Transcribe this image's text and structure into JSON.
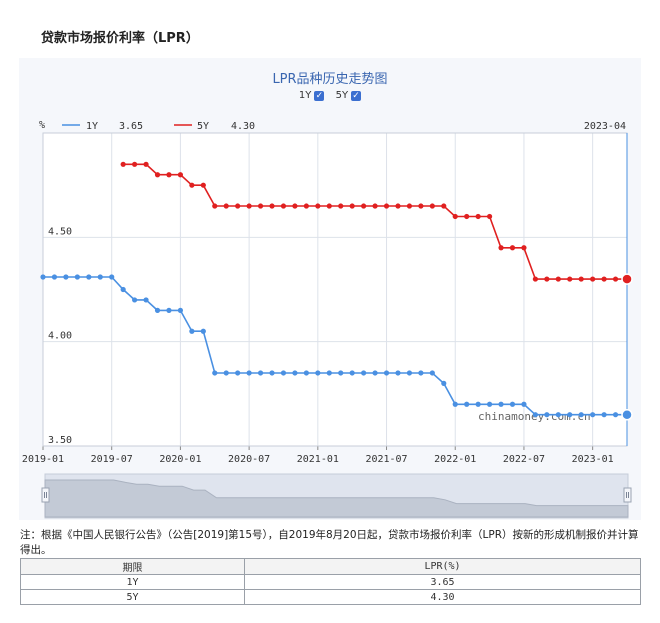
{
  "page": {
    "title": "贷款市场报价利率（LPR）",
    "note": "注：根据《中国人民银行公告》（公告[2019]第15号），自2019年8月20日起，贷款市场报价利率（LPR）按新的形成机制报价并计算得出。"
  },
  "toggles": [
    {
      "label": "1Y",
      "checked": true
    },
    {
      "label": "5Y",
      "checked": true
    }
  ],
  "header": {
    "unit": "%",
    "legend_1y_label": "1Y",
    "legend_1y_value": "3.65",
    "legend_5y_label": "5Y",
    "legend_5y_value": "4.30",
    "current_date": "2023-04"
  },
  "watermark": "chinamoney.com.cn",
  "chart_data": {
    "type": "line",
    "title": "LPR品种历史走势图",
    "x": [
      "2019-01",
      "2019-02",
      "2019-03",
      "2019-04",
      "2019-05",
      "2019-06",
      "2019-07",
      "2019-08",
      "2019-09",
      "2019-10",
      "2019-11",
      "2019-12",
      "2020-01",
      "2020-02",
      "2020-03",
      "2020-04",
      "2020-05",
      "2020-06",
      "2020-07",
      "2020-08",
      "2020-09",
      "2020-10",
      "2020-11",
      "2020-12",
      "2021-01",
      "2021-02",
      "2021-03",
      "2021-04",
      "2021-05",
      "2021-06",
      "2021-07",
      "2021-08",
      "2021-09",
      "2021-10",
      "2021-11",
      "2021-12",
      "2022-01",
      "2022-02",
      "2022-03",
      "2022-04",
      "2022-05",
      "2022-06",
      "2022-07",
      "2022-08",
      "2022-09",
      "2022-10",
      "2022-11",
      "2022-12",
      "2023-01",
      "2023-02",
      "2023-03",
      "2023-04"
    ],
    "series": [
      {
        "name": "1Y",
        "color": "#4a90e2",
        "values": [
          4.31,
          4.31,
          4.31,
          4.31,
          4.31,
          4.31,
          4.31,
          4.25,
          4.2,
          4.2,
          4.15,
          4.15,
          4.15,
          4.05,
          4.05,
          3.85,
          3.85,
          3.85,
          3.85,
          3.85,
          3.85,
          3.85,
          3.85,
          3.85,
          3.85,
          3.85,
          3.85,
          3.85,
          3.85,
          3.85,
          3.85,
          3.85,
          3.85,
          3.85,
          3.85,
          3.8,
          3.7,
          3.7,
          3.7,
          3.7,
          3.7,
          3.7,
          3.7,
          3.65,
          3.65,
          3.65,
          3.65,
          3.65,
          3.65,
          3.65,
          3.65,
          3.65
        ]
      },
      {
        "name": "5Y",
        "color": "#e02020",
        "values": [
          null,
          null,
          null,
          null,
          null,
          null,
          null,
          4.85,
          4.85,
          4.85,
          4.8,
          4.8,
          4.8,
          4.75,
          4.75,
          4.65,
          4.65,
          4.65,
          4.65,
          4.65,
          4.65,
          4.65,
          4.65,
          4.65,
          4.65,
          4.65,
          4.65,
          4.65,
          4.65,
          4.65,
          4.65,
          4.65,
          4.65,
          4.65,
          4.65,
          4.65,
          4.6,
          4.6,
          4.6,
          4.6,
          4.45,
          4.45,
          4.45,
          4.3,
          4.3,
          4.3,
          4.3,
          4.3,
          4.3,
          4.3,
          4.3,
          4.3
        ]
      }
    ],
    "y_ticks": [
      "4.50",
      "4.00",
      "3.50"
    ],
    "x_ticks": [
      "2019-01",
      "2019-07",
      "2020-01",
      "2020-07",
      "2021-01",
      "2021-07",
      "2022-01",
      "2022-07",
      "2023-01"
    ],
    "ylim": [
      3.5,
      5.0
    ],
    "grid": true
  },
  "table": {
    "headers": [
      "期限",
      "LPR(%)"
    ],
    "rows": [
      [
        "1Y",
        "3.65"
      ],
      [
        "5Y",
        "4.30"
      ]
    ]
  }
}
